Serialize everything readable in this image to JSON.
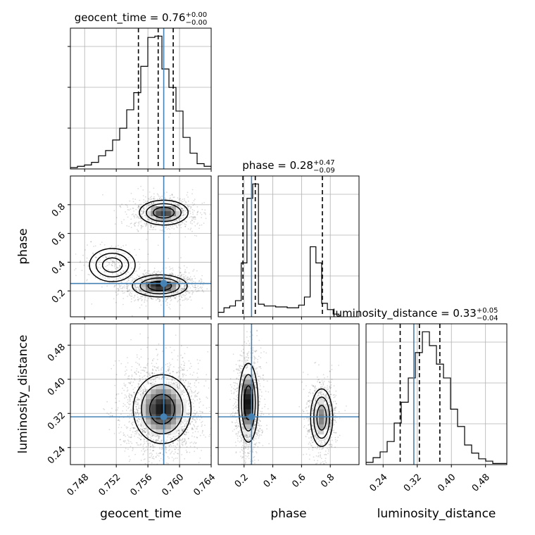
{
  "chart_data": {
    "type": "corner",
    "truth_color": "#4682b4",
    "parameters": [
      {
        "name": "geocent_time",
        "range": [
          0.7462,
          0.764
        ],
        "ticks": [
          "0.748",
          "0.752",
          "0.756",
          "0.760",
          "0.764"
        ],
        "tick_values": [
          0.748,
          0.752,
          0.756,
          0.76,
          0.764
        ]
      },
      {
        "name": "phase",
        "range": [
          0.02,
          1.0
        ],
        "ticks": [
          "0.2",
          "0.4",
          "0.6",
          "0.8"
        ],
        "tick_values": [
          0.2,
          0.4,
          0.6,
          0.8
        ]
      },
      {
        "name": "luminosity_distance",
        "range": [
          0.2,
          0.53
        ],
        "ticks": [
          "0.24",
          "0.32",
          "0.40",
          "0.48"
        ],
        "tick_values": [
          0.24,
          0.32,
          0.4,
          0.48
        ]
      }
    ],
    "titles": [
      {
        "param": "geocent_time",
        "text": "geocent_time = 0.76",
        "sup": "+0.00",
        "sub": "−0.00"
      },
      {
        "param": "phase",
        "text": "phase = 0.28",
        "sup": "+0.47",
        "sub": "−0.09"
      },
      {
        "param": "luminosity_distance",
        "text": "luminosity_distance = 0.33",
        "sup": "+0.05",
        "sub": "−0.04"
      }
    ],
    "truths": {
      "geocent_time": 0.758,
      "phase": 0.252,
      "luminosity_distance": 0.312
    },
    "quantiles": {
      "geocent_time": [
        0.7548,
        0.7573,
        0.7592
      ],
      "phase": [
        0.192,
        0.278,
        0.745
      ],
      "luminosity_distance": [
        0.28,
        0.325,
        0.373
      ]
    },
    "histograms": {
      "geocent_time": {
        "edges_start": 0.7462,
        "bin_width": 0.00089,
        "counts": [
          1,
          2,
          3,
          5,
          10,
          14,
          22,
          31,
          45,
          58,
          78,
          100,
          101,
          76,
          62,
          44,
          24,
          12,
          4,
          2,
          1
        ]
      },
      "phase": {
        "edges_start": 0.02,
        "bin_width": 0.04,
        "counts": [
          5,
          10,
          12,
          18,
          60,
          132,
          148,
          14,
          12,
          12,
          11,
          11,
          10,
          10,
          13,
          22,
          78,
          60,
          15,
          8,
          3
        ]
      },
      "luminosity_distance": {
        "edges_start": 0.2,
        "bin_width": 0.0165,
        "counts": [
          2,
          6,
          11,
          20,
          36,
          54,
          75,
          97,
          115,
          103,
          87,
          75,
          48,
          33,
          17,
          10,
          5,
          3,
          1,
          1
        ]
      }
    },
    "modes_2d": {
      "geocent_time_vs_phase": [
        {
          "x": 0.758,
          "y": 0.745,
          "sx": 0.0016,
          "sy": 0.045,
          "weight": 0.42
        },
        {
          "x": 0.7575,
          "y": 0.235,
          "sx": 0.0018,
          "sy": 0.04,
          "weight": 0.5
        },
        {
          "x": 0.7515,
          "y": 0.38,
          "sx": 0.0015,
          "sy": 0.06,
          "weight": 0.08
        }
      ],
      "geocent_time_vs_luminosity_distance": [
        {
          "x": 0.7578,
          "y": 0.33,
          "sx": 0.0019,
          "sy": 0.042,
          "weight": 1.0
        }
      ],
      "phase_vs_luminosity_distance": [
        {
          "x": 0.23,
          "y": 0.345,
          "sx": 0.035,
          "sy": 0.048,
          "weight": 0.62
        },
        {
          "x": 0.74,
          "y": 0.31,
          "sx": 0.04,
          "sy": 0.035,
          "weight": 0.38
        }
      ]
    }
  }
}
